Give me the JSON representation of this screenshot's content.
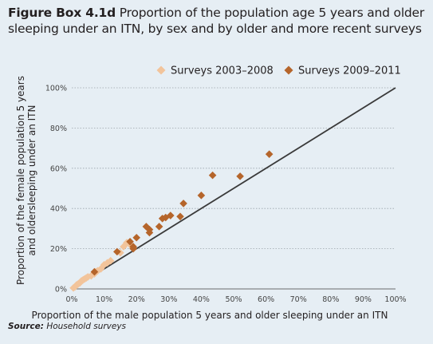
{
  "title": {
    "label": "Figure Box 4.1d",
    "text": "Proportion of the population age 5 years and older sleeping under an ITN, by sex and by older and more recent surveys"
  },
  "source": {
    "label": "Source:",
    "text": "Household surveys"
  },
  "chart_data": {
    "type": "scatter",
    "xlabel": "Proportion of the male population 5 years and older sleeping under an ITN",
    "ylabel": "Proportion of the female population 5 years and oldersleeping under an ITN",
    "xlim": [
      0,
      100
    ],
    "ylim": [
      0,
      100
    ],
    "x_ticks": [
      "0%",
      "10%",
      "20%",
      "30%",
      "40%",
      "50%",
      "60%",
      "70%",
      "80%",
      "90%",
      "100%"
    ],
    "y_ticks": [
      "0%",
      "20%",
      "40%",
      "60%",
      "80%",
      "100%"
    ],
    "grid": "horizontal dotted",
    "legend_position": "top-right",
    "reference_line": {
      "from": [
        0,
        0
      ],
      "to": [
        100,
        100
      ],
      "color": "#3a3a3a"
    },
    "series": [
      {
        "name": "Surveys 2003–2008",
        "color": "#f2c49b",
        "points": [
          [
            0.5,
            0.5
          ],
          [
            1,
            1
          ],
          [
            1.5,
            2
          ],
          [
            2,
            2.5
          ],
          [
            2.5,
            3
          ],
          [
            3,
            4
          ],
          [
            3.5,
            4.5
          ],
          [
            4,
            5
          ],
          [
            4.5,
            5.5
          ],
          [
            5,
            6
          ],
          [
            6,
            6.5
          ],
          [
            7,
            7.5
          ],
          [
            7.5,
            8.5
          ],
          [
            8,
            9
          ],
          [
            9,
            10
          ],
          [
            10,
            12
          ],
          [
            11,
            13
          ],
          [
            12,
            14
          ],
          [
            15,
            18
          ],
          [
            16,
            21
          ],
          [
            17,
            23
          ],
          [
            18,
            22
          ]
        ]
      },
      {
        "name": "Surveys 2009–2011",
        "color": "#b5652b",
        "points": [
          [
            7,
            8.5
          ],
          [
            14,
            18.5
          ],
          [
            18,
            23.5
          ],
          [
            19,
            21
          ],
          [
            19,
            20
          ],
          [
            20,
            25.5
          ],
          [
            23,
            31
          ],
          [
            24,
            28
          ],
          [
            24,
            29.5
          ],
          [
            27,
            31
          ],
          [
            28,
            35
          ],
          [
            29,
            35.5
          ],
          [
            30.5,
            36.5
          ],
          [
            33.5,
            36
          ],
          [
            34.5,
            42.5
          ],
          [
            40,
            46.5
          ],
          [
            43.5,
            56.5
          ],
          [
            52,
            56
          ],
          [
            61,
            67
          ]
        ]
      }
    ]
  }
}
